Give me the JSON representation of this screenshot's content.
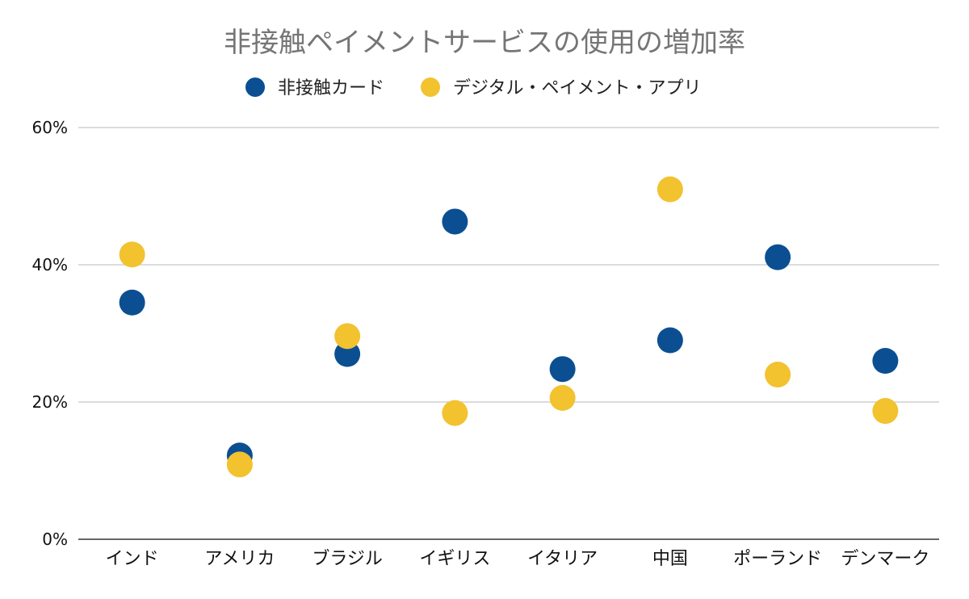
{
  "chart_data": {
    "type": "scatter",
    "title": "非接触ペイメントサービスの使用の増加率",
    "categories": [
      "インド",
      "アメリカ",
      "ブラジル",
      "イギリス",
      "イタリア",
      "中国",
      "ポーランド",
      "デンマーク"
    ],
    "series": [
      {
        "name": "非接触カード",
        "color": "#0B4F92",
        "values": [
          34.5,
          12.2,
          27.0,
          46.3,
          24.8,
          29.0,
          41.1,
          26.0
        ]
      },
      {
        "name": "デジタル・ペイメント・アプリ",
        "color": "#F2C22F",
        "values": [
          41.5,
          10.9,
          29.6,
          18.4,
          20.6,
          51.0,
          24.0,
          18.7
        ]
      }
    ],
    "ylim": [
      0,
      60
    ],
    "yticks": [
      0,
      20,
      40,
      60
    ],
    "ytick_labels": [
      "0%",
      "20%",
      "40%",
      "60%"
    ],
    "grid": true,
    "legend_position": "top"
  }
}
